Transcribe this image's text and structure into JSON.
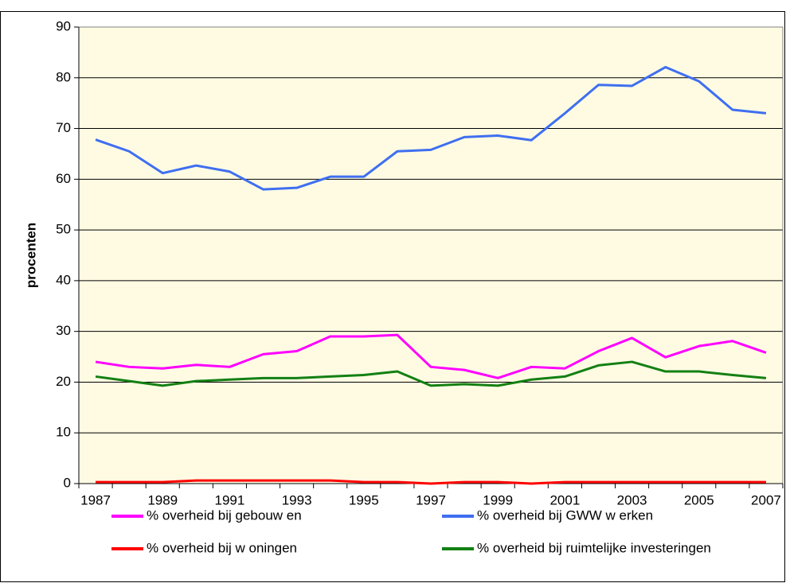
{
  "chart_data": {
    "type": "line",
    "y_label": "procenten",
    "categories": [
      "1987",
      null,
      "1989",
      null,
      "1991",
      null,
      "1993",
      null,
      "1995",
      null,
      "1997",
      null,
      "1999",
      null,
      "2001",
      null,
      "2003",
      null,
      "2005",
      null,
      "2007"
    ],
    "series": [
      {
        "name": "% overheid bij gebouw en",
        "color": "#ff00ff",
        "values": [
          24.0,
          23.0,
          22.7,
          23.4,
          23.0,
          25.5,
          26.1,
          29.0,
          29.0,
          29.3,
          23.0,
          22.4,
          20.8,
          23.0,
          22.7,
          26.1,
          28.7,
          24.9,
          27.1,
          28.1,
          25.8
        ]
      },
      {
        "name": "% overheid bij GWW w erken",
        "color": "#3f6ff0",
        "values": [
          67.8,
          65.5,
          61.2,
          62.7,
          61.5,
          58.0,
          58.3,
          60.5,
          60.5,
          65.5,
          65.8,
          68.3,
          68.6,
          67.7,
          73.0,
          78.6,
          78.4,
          82.1,
          79.3,
          73.7,
          73.0
        ]
      },
      {
        "name": "% overheid bij w oningen",
        "color": "#ff0000",
        "values": [
          0.3,
          0.3,
          0.3,
          0.6,
          0.6,
          0.6,
          0.6,
          0.6,
          0.3,
          0.3,
          0,
          0.3,
          0.3,
          0,
          0.3,
          0.3,
          0.3,
          0.3,
          0.3,
          0.3,
          0.3
        ]
      },
      {
        "name": "% overheid bij ruimtelijke investeringen",
        "color": "#138013",
        "values": [
          21.1,
          20.2,
          19.3,
          20.2,
          20.5,
          20.8,
          20.8,
          21.1,
          21.4,
          22.1,
          19.3,
          19.6,
          19.3,
          20.5,
          21.1,
          23.3,
          24.0,
          22.1,
          22.1,
          21.4,
          20.8
        ]
      }
    ],
    "ylim": [
      0,
      90
    ],
    "yticks": [
      0,
      10,
      20,
      30,
      40,
      50,
      60,
      70,
      80,
      90
    ],
    "grid": true,
    "legend": "bottom",
    "plot_background": "#fffbe3"
  }
}
